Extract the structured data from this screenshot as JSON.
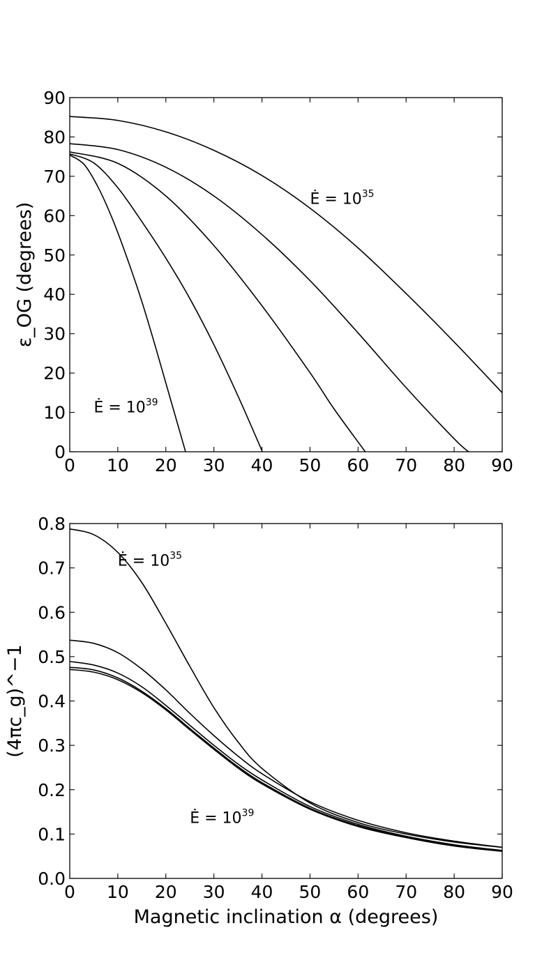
{
  "chart_data": [
    {
      "type": "line",
      "title": "",
      "xlabel": "",
      "ylabel": "ε_OG (degrees)",
      "xlim": [
        0,
        90
      ],
      "ylim": [
        0,
        90
      ],
      "xticks": [
        0,
        10,
        20,
        30,
        40,
        50,
        60,
        70,
        80,
        90
      ],
      "yticks": [
        0,
        10,
        20,
        30,
        40,
        50,
        60,
        70,
        80,
        90
      ],
      "grid": false,
      "annotations": [
        {
          "base": "Ė = 10",
          "exp": "35",
          "x": 50,
          "y": 63
        },
        {
          "base": "Ė = 10",
          "exp": "39",
          "x": 5,
          "y": 10
        }
      ],
      "series": [
        {
          "x": [
            0,
            10,
            20,
            30,
            40,
            50,
            60,
            70,
            80,
            90
          ],
          "y": [
            85.2,
            84.2,
            81.3,
            76.6,
            70.2,
            61.9,
            51.8,
            40.2,
            27.9,
            15.0
          ]
        },
        {
          "x": [
            0,
            10,
            20,
            30,
            40,
            50,
            60,
            70,
            80,
            83.0
          ],
          "y": [
            78.3,
            76.8,
            72.3,
            65.0,
            55.2,
            43.5,
            30.2,
            16.3,
            3.3,
            0
          ]
        },
        {
          "x": [
            0,
            10,
            20,
            30,
            40,
            50,
            55,
            61.5
          ],
          "y": [
            76.2,
            73.3,
            65.0,
            52.4,
            37.1,
            20.1,
            10.9,
            0
          ]
        },
        {
          "x": [
            0,
            5,
            10,
            15,
            20,
            25,
            30,
            35,
            40.1
          ],
          "y": [
            75.7,
            73.4,
            67.1,
            58.5,
            49.2,
            38.9,
            27.2,
            14.2,
            0
          ]
        },
        {
          "x": [
            0,
            3,
            6,
            9,
            12,
            15,
            18,
            21,
            24.1
          ],
          "y": [
            75.4,
            73.0,
            67.0,
            58.8,
            49.0,
            38.2,
            26.0,
            13.2,
            0
          ]
        }
      ]
    },
    {
      "type": "line",
      "title": "",
      "xlabel": "Magnetic inclination α (degrees)",
      "ylabel": "(4πc_g)^−1",
      "xlim": [
        0,
        90
      ],
      "ylim": [
        0,
        0.8
      ],
      "xticks": [
        0,
        10,
        20,
        30,
        40,
        50,
        60,
        70,
        80,
        90
      ],
      "yticks": [
        "0.0",
        "0.1",
        "0.2",
        "0.3",
        "0.4",
        "0.5",
        "0.6",
        "0.7",
        "0.8"
      ],
      "grid": false,
      "annotations": [
        {
          "base": "Ė = 10",
          "exp": "35",
          "x": 10,
          "y": 0.705
        },
        {
          "base": "Ė = 10",
          "exp": "39",
          "x": 25,
          "y": 0.125
        }
      ],
      "series": [
        {
          "x": [
            0,
            5,
            10,
            15,
            20,
            25,
            30,
            35,
            40,
            50,
            60,
            70,
            80,
            90
          ],
          "y": [
            0.788,
            0.775,
            0.735,
            0.667,
            0.575,
            0.478,
            0.385,
            0.308,
            0.248,
            0.17,
            0.126,
            0.1,
            0.082,
            0.07
          ]
        },
        {
          "x": [
            0,
            5,
            10,
            15,
            20,
            25,
            30,
            35,
            40,
            50,
            60,
            70,
            80,
            90
          ],
          "y": [
            0.537,
            0.53,
            0.509,
            0.472,
            0.425,
            0.372,
            0.322,
            0.276,
            0.236,
            0.173,
            0.131,
            0.103,
            0.084,
            0.07
          ]
        },
        {
          "x": [
            0,
            5,
            10,
            15,
            20,
            25,
            30,
            35,
            40,
            50,
            60,
            70,
            80,
            90
          ],
          "y": [
            0.489,
            0.481,
            0.463,
            0.432,
            0.39,
            0.345,
            0.3,
            0.258,
            0.222,
            0.162,
            0.122,
            0.095,
            0.076,
            0.063
          ]
        },
        {
          "x": [
            0,
            5,
            10,
            15,
            20,
            25,
            30,
            35,
            40,
            50,
            60,
            70,
            80,
            90
          ],
          "y": [
            0.476,
            0.47,
            0.452,
            0.422,
            0.383,
            0.338,
            0.294,
            0.252,
            0.216,
            0.158,
            0.119,
            0.093,
            0.074,
            0.062
          ]
        },
        {
          "x": [
            0,
            5,
            10,
            15,
            20,
            25,
            30,
            35,
            40,
            50,
            60,
            70,
            80,
            90
          ],
          "y": [
            0.471,
            0.465,
            0.448,
            0.419,
            0.38,
            0.335,
            0.291,
            0.249,
            0.213,
            0.156,
            0.117,
            0.092,
            0.073,
            0.061
          ]
        }
      ]
    }
  ]
}
